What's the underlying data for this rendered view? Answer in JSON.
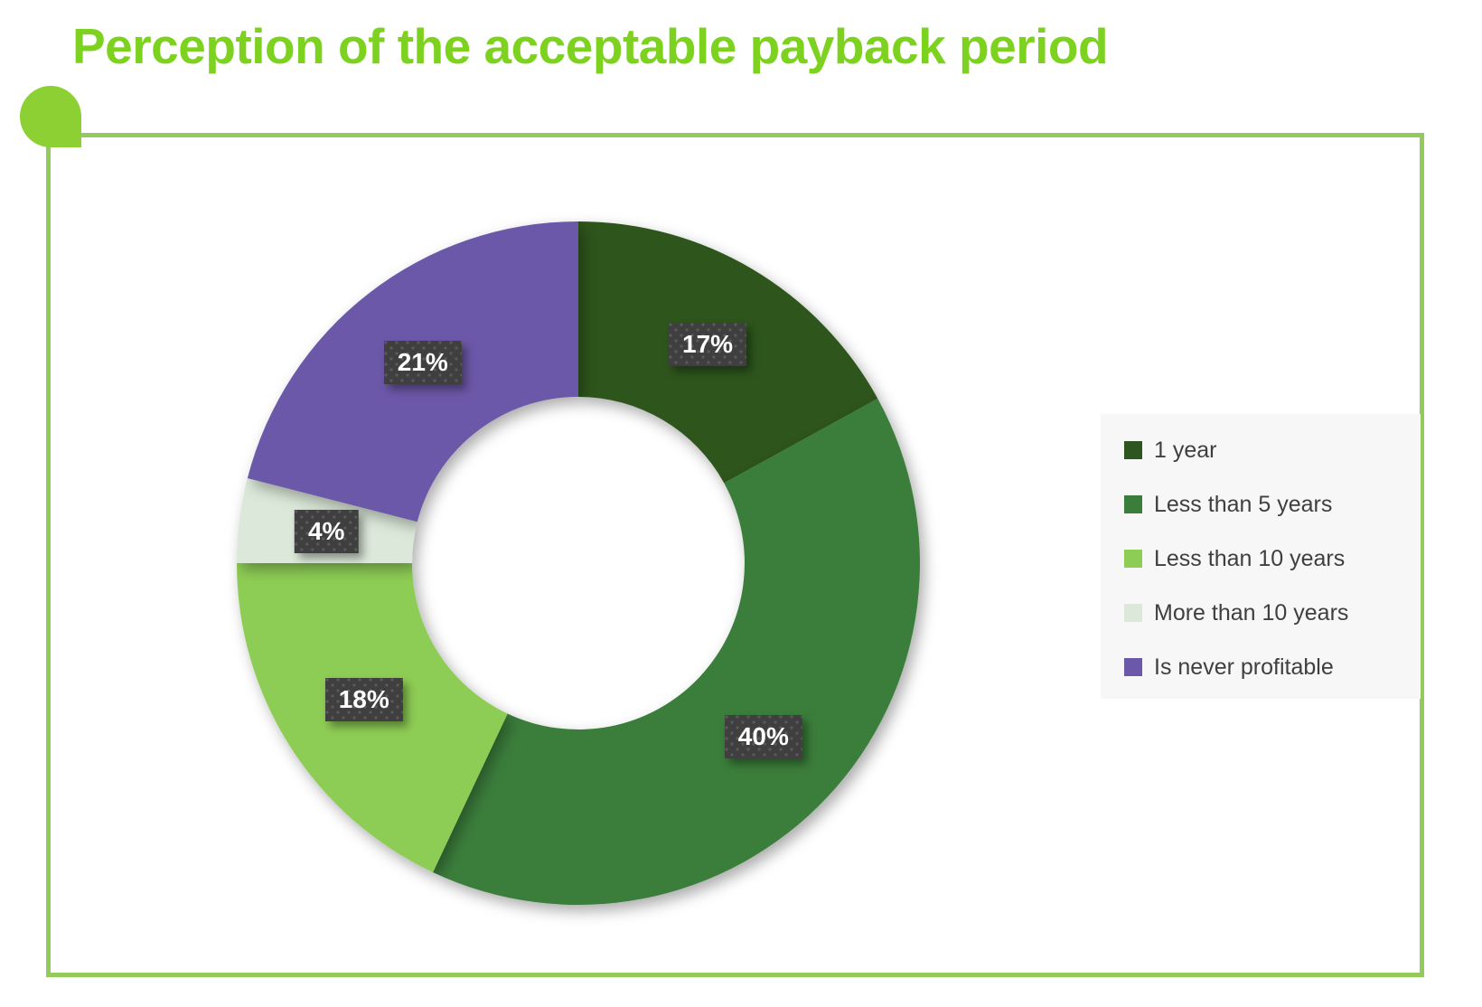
{
  "title": "Perception of the acceptable payback period",
  "theme": {
    "title_color": "#7DD21F",
    "frame_border_color": "#92CB5C",
    "corner_blob_color": "#8CD033",
    "page_bg": "#FFFFFF"
  },
  "data_label_style": {
    "bg": "#3F3F3F",
    "text_color": "#FFFFFF"
  },
  "legend": {
    "bg": "#F7F7F7",
    "text_color": "#3F3F3F",
    "position": "right"
  },
  "chart_data": {
    "type": "pie",
    "subtype": "donut",
    "title": "Perception of the acceptable payback period",
    "start_angle_deg": 0,
    "direction": "clockwise",
    "legend_position": "right",
    "unit": "%",
    "categories": [
      "1 year",
      "Less than 5 years",
      "Less than 10 years",
      "More than 10 years",
      "Is never profitable"
    ],
    "values": [
      17,
      40,
      18,
      4,
      21
    ],
    "slices": [
      {
        "label": "1 year",
        "value": 17,
        "display": "17%",
        "color": "#2E541F"
      },
      {
        "label": "Less than 5 years",
        "value": 40,
        "display": "40%",
        "color": "#3B7D3B"
      },
      {
        "label": "Less than 10 years",
        "value": 18,
        "display": "18%",
        "color": "#8ECD55"
      },
      {
        "label": "More than 10 years",
        "value": 4,
        "display": "4%",
        "color": "#DCE9DA"
      },
      {
        "label": "Is never profitable",
        "value": 21,
        "display": "21%",
        "color": "#6C58A8"
      }
    ]
  }
}
